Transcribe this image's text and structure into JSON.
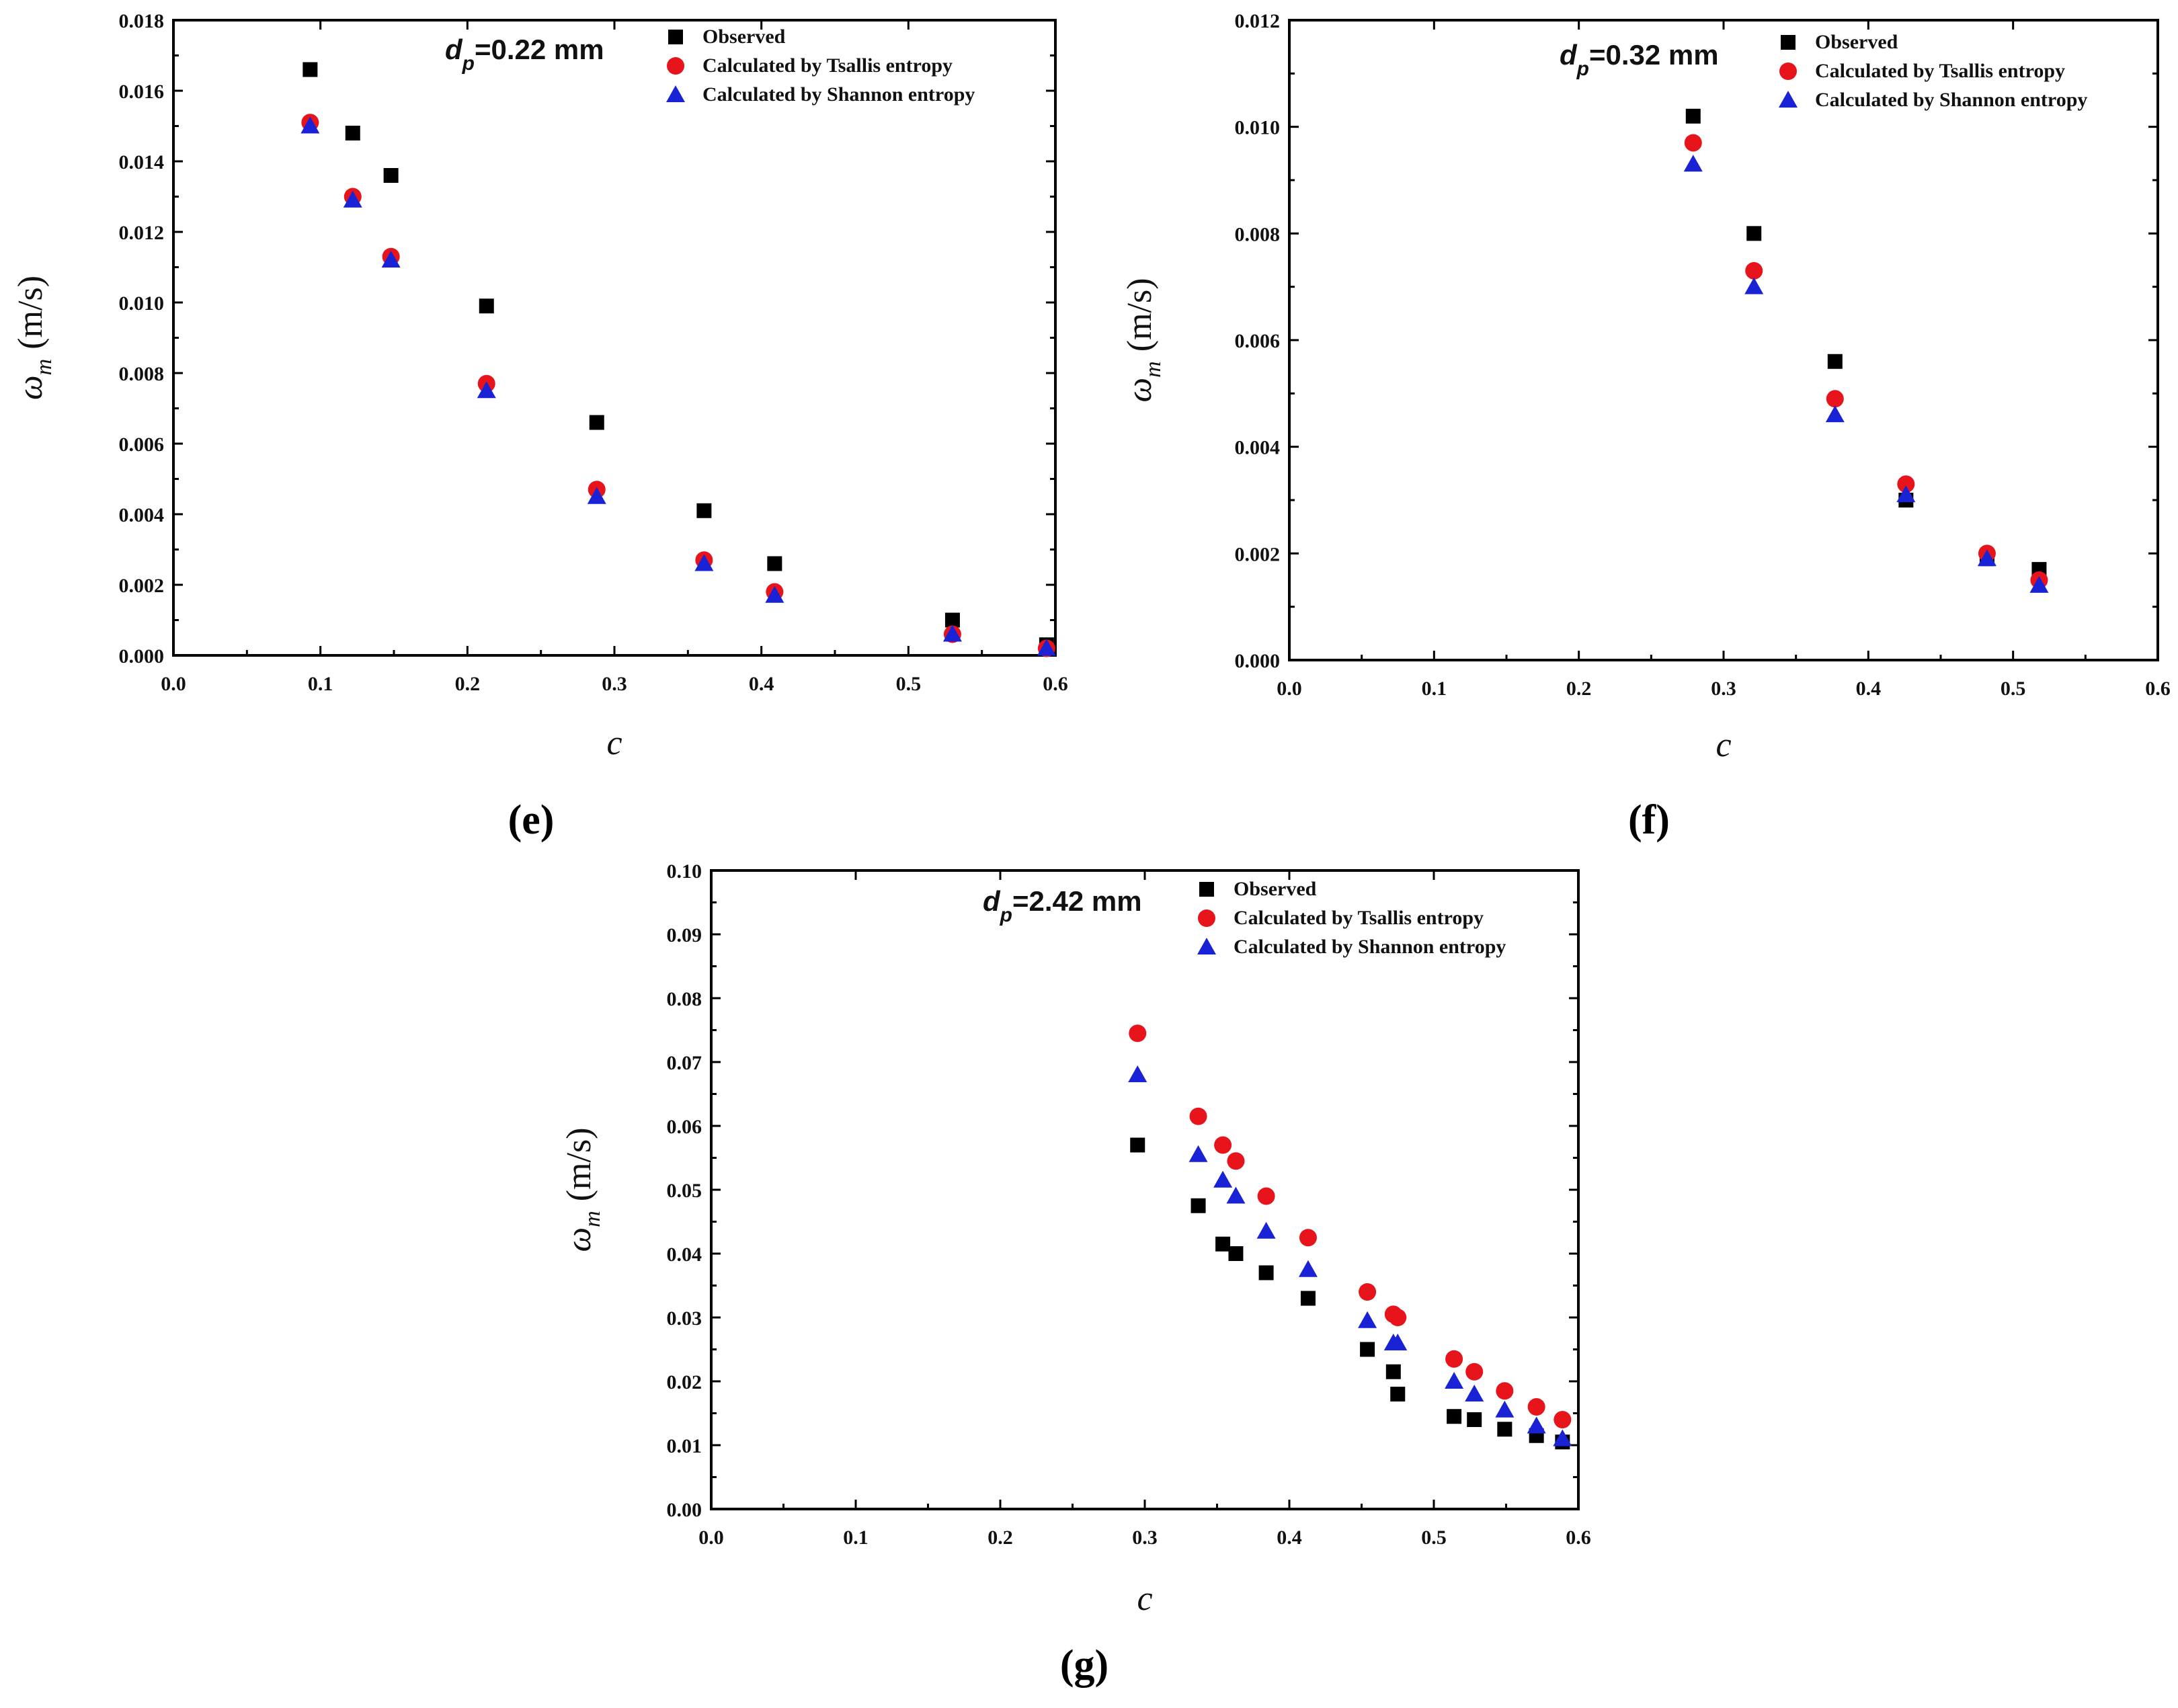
{
  "chart_data": [
    {
      "panel_tag": "(e)",
      "type": "scatter",
      "annotation": {
        "var": "d",
        "sub": "p",
        "value": "=0.22 mm"
      },
      "xlabel": "c",
      "ylabel": {
        "symbol": "ω",
        "sub": "m",
        "unit": "(m/s)"
      },
      "xlim": [
        0,
        0.6
      ],
      "ylim": [
        0,
        0.018
      ],
      "xticks": [
        0.0,
        0.1,
        0.2,
        0.3,
        0.4,
        0.5,
        0.6
      ],
      "xtick_labels": [
        "0.0",
        "0.1",
        "0.2",
        "0.3",
        "0.4",
        "0.5",
        "0.6"
      ],
      "yticks": [
        0,
        0.002,
        0.004,
        0.006,
        0.008,
        0.01,
        0.012,
        0.014,
        0.016,
        0.018
      ],
      "ytick_labels": [
        "0.000",
        "0.002",
        "0.004",
        "0.006",
        "0.008",
        "0.010",
        "0.012",
        "0.014",
        "0.016",
        "0.018"
      ],
      "legend_position": "top-right",
      "series": [
        {
          "name": "Observed",
          "marker": "square",
          "color": "#000000",
          "x": [
            0.093,
            0.122,
            0.148,
            0.213,
            0.288,
            0.361,
            0.409,
            0.53,
            0.594
          ],
          "y": [
            0.0166,
            0.0148,
            0.0136,
            0.0099,
            0.0066,
            0.0041,
            0.0026,
            0.001,
            0.0003
          ]
        },
        {
          "name": "Calculated by Tsallis entropy",
          "marker": "circle",
          "color": "#e8141c",
          "x": [
            0.093,
            0.122,
            0.148,
            0.213,
            0.288,
            0.361,
            0.409,
            0.53,
            0.594
          ],
          "y": [
            0.0151,
            0.013,
            0.0113,
            0.0077,
            0.0047,
            0.0027,
            0.0018,
            0.0006,
            0.0002
          ]
        },
        {
          "name": "Calculated by  Shannon entropy",
          "marker": "triangle",
          "color": "#1a22d6",
          "x": [
            0.093,
            0.122,
            0.148,
            0.213,
            0.288,
            0.361,
            0.409,
            0.53,
            0.594
          ],
          "y": [
            0.015,
            0.0129,
            0.0112,
            0.0075,
            0.0045,
            0.0026,
            0.0017,
            0.0006,
            0.0002
          ]
        }
      ]
    },
    {
      "panel_tag": "(f)",
      "type": "scatter",
      "annotation": {
        "var": "d",
        "sub": "p",
        "value": "=0.32 mm"
      },
      "xlabel": "c",
      "ylabel": {
        "symbol": "ω",
        "sub": "m",
        "unit": "(m/s)"
      },
      "xlim": [
        0,
        0.6
      ],
      "ylim": [
        0,
        0.012
      ],
      "xticks": [
        0.0,
        0.1,
        0.2,
        0.3,
        0.4,
        0.5,
        0.6
      ],
      "xtick_labels": [
        "0.0",
        "0.1",
        "0.2",
        "0.3",
        "0.4",
        "0.5",
        "0.6"
      ],
      "yticks": [
        0,
        0.002,
        0.004,
        0.006,
        0.008,
        0.01,
        0.012
      ],
      "ytick_labels": [
        "0.000",
        "0.002",
        "0.004",
        "0.006",
        "0.008",
        "0.010",
        "0.012"
      ],
      "legend_position": "top-right",
      "series": [
        {
          "name": "Observed",
          "marker": "square",
          "color": "#000000",
          "x": [
            0.279,
            0.321,
            0.377,
            0.426,
            0.482,
            0.518
          ],
          "y": [
            0.0102,
            0.008,
            0.0056,
            0.003,
            0.0019,
            0.0017
          ]
        },
        {
          "name": "Calculated by Tsallis entropy",
          "marker": "circle",
          "color": "#e8141c",
          "x": [
            0.279,
            0.321,
            0.377,
            0.426,
            0.482,
            0.518
          ],
          "y": [
            0.0097,
            0.0073,
            0.0049,
            0.0033,
            0.002,
            0.0015
          ]
        },
        {
          "name": "Calculated by  Shannon entropy",
          "marker": "triangle",
          "color": "#1a22d6",
          "x": [
            0.279,
            0.321,
            0.377,
            0.426,
            0.482,
            0.518
          ],
          "y": [
            0.0093,
            0.007,
            0.0046,
            0.0031,
            0.0019,
            0.0014
          ]
        }
      ]
    },
    {
      "panel_tag": "(g)",
      "type": "scatter",
      "annotation": {
        "var": "d",
        "sub": "p",
        "value": "=2.42 mm"
      },
      "xlabel": "c",
      "ylabel": {
        "symbol": "ω",
        "sub": "m",
        "unit": "(m/s)"
      },
      "xlim": [
        0,
        0.6
      ],
      "ylim": [
        0,
        0.1
      ],
      "xticks": [
        0.0,
        0.1,
        0.2,
        0.3,
        0.4,
        0.5,
        0.6
      ],
      "xtick_labels": [
        "0.0",
        "0.1",
        "0.2",
        "0.3",
        "0.4",
        "0.5",
        "0.6"
      ],
      "yticks": [
        0,
        0.01,
        0.02,
        0.03,
        0.04,
        0.05,
        0.06,
        0.07,
        0.08,
        0.09,
        0.1
      ],
      "ytick_labels": [
        "0.00",
        "0.01",
        "0.02",
        "0.03",
        "0.04",
        "0.05",
        "0.06",
        "0.07",
        "0.08",
        "0.09",
        "0.10"
      ],
      "legend_position": "top-right",
      "series": [
        {
          "name": "Observed",
          "marker": "square",
          "color": "#000000",
          "x": [
            0.295,
            0.337,
            0.354,
            0.363,
            0.384,
            0.413,
            0.454,
            0.472,
            0.475,
            0.514,
            0.528,
            0.549,
            0.571,
            0.589
          ],
          "y": [
            0.057,
            0.0475,
            0.0415,
            0.04,
            0.037,
            0.033,
            0.025,
            0.0215,
            0.018,
            0.0145,
            0.014,
            0.0125,
            0.0115,
            0.0105
          ]
        },
        {
          "name": "Calculated by Tsallis entropy",
          "marker": "circle",
          "color": "#e8141c",
          "x": [
            0.295,
            0.337,
            0.354,
            0.363,
            0.384,
            0.413,
            0.454,
            0.472,
            0.475,
            0.514,
            0.528,
            0.549,
            0.571,
            0.589
          ],
          "y": [
            0.0745,
            0.0615,
            0.057,
            0.0545,
            0.049,
            0.0425,
            0.034,
            0.0305,
            0.03,
            0.0235,
            0.0215,
            0.0185,
            0.016,
            0.014
          ]
        },
        {
          "name": "Calculated by  Shannon entropy",
          "marker": "triangle",
          "color": "#1a22d6",
          "x": [
            0.295,
            0.337,
            0.354,
            0.363,
            0.384,
            0.413,
            0.454,
            0.472,
            0.475,
            0.514,
            0.528,
            0.549,
            0.571,
            0.589
          ],
          "y": [
            0.068,
            0.0555,
            0.0515,
            0.049,
            0.0435,
            0.0375,
            0.0295,
            0.026,
            0.026,
            0.02,
            0.018,
            0.0155,
            0.013,
            0.011
          ]
        }
      ]
    }
  ]
}
